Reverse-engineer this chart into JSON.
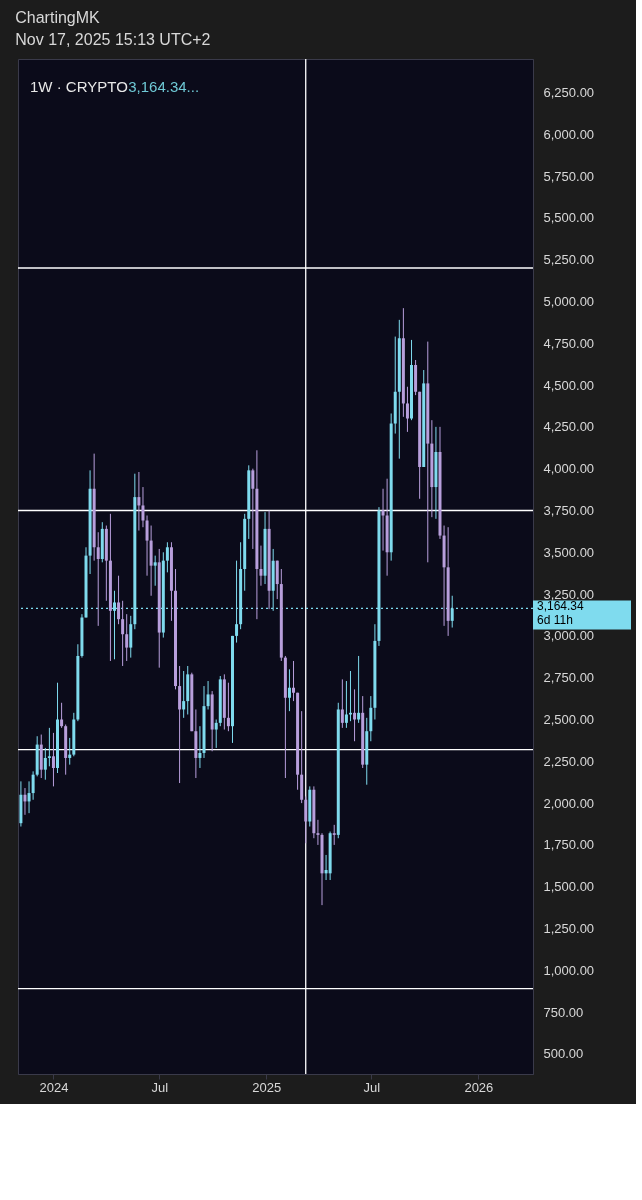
{
  "chart_data": {
    "type": "candlestick",
    "title": "1W · CRYPTO",
    "subtitle": "3,164.34...",
    "annotations": [
      "ChartingMK",
      "Nov 17, 2025 15:13 UTC+2",
      "6d 11h"
    ],
    "x": [
      "2023-11-06",
      "2023-11-13",
      "2023-11-20",
      "2023-11-27",
      "2023-12-04",
      "2023-12-11",
      "2023-12-18",
      "2023-12-25",
      "2024-01-01",
      "2024-01-08",
      "2024-01-15",
      "2024-01-22",
      "2024-01-29",
      "2024-02-05",
      "2024-02-12",
      "2024-02-19",
      "2024-02-26",
      "2024-03-04",
      "2024-03-11",
      "2024-03-18",
      "2024-03-25",
      "2024-04-01",
      "2024-04-08",
      "2024-04-15",
      "2024-04-22",
      "2024-04-29",
      "2024-05-06",
      "2024-05-13",
      "2024-05-20",
      "2024-05-27",
      "2024-06-03",
      "2024-06-10",
      "2024-06-17",
      "2024-06-24",
      "2024-07-01",
      "2024-07-08",
      "2024-07-15",
      "2024-07-22",
      "2024-07-29",
      "2024-08-05",
      "2024-08-12",
      "2024-08-19",
      "2024-08-26",
      "2024-09-02",
      "2024-09-09",
      "2024-09-16",
      "2024-09-23",
      "2024-09-30",
      "2024-10-07",
      "2024-10-14",
      "2024-10-21",
      "2024-10-28",
      "2024-11-04",
      "2024-11-11",
      "2024-11-18",
      "2024-11-25",
      "2024-12-02",
      "2024-12-09",
      "2024-12-16",
      "2024-12-23",
      "2024-12-30",
      "2025-01-06",
      "2025-01-13",
      "2025-01-20",
      "2025-01-27",
      "2025-02-03",
      "2025-02-10",
      "2025-02-17",
      "2025-02-24",
      "2025-03-03",
      "2025-03-10",
      "2025-03-17",
      "2025-03-24",
      "2025-03-31",
      "2025-04-07",
      "2025-04-14",
      "2025-04-21",
      "2025-04-28",
      "2025-05-05",
      "2025-05-12",
      "2025-05-19",
      "2025-05-26",
      "2025-06-02",
      "2025-06-09",
      "2025-06-16",
      "2025-06-23",
      "2025-06-30",
      "2025-07-07",
      "2025-07-14",
      "2025-07-21",
      "2025-07-28",
      "2025-08-04",
      "2025-08-11",
      "2025-08-18",
      "2025-08-25",
      "2025-09-01",
      "2025-09-08",
      "2025-09-15",
      "2025-09-22",
      "2025-09-29",
      "2025-10-06",
      "2025-10-13",
      "2025-10-20",
      "2025-10-27",
      "2025-11-03",
      "2025-11-10",
      "2025-11-17"
    ],
    "ohlc": [
      [
        1880,
        2130,
        1860,
        2050
      ],
      [
        2050,
        2090,
        1930,
        2010
      ],
      [
        2010,
        2130,
        1940,
        2060
      ],
      [
        2060,
        2190,
        2020,
        2170
      ],
      [
        2170,
        2400,
        2160,
        2350
      ],
      [
        2350,
        2410,
        2150,
        2200
      ],
      [
        2200,
        2330,
        2140,
        2270
      ],
      [
        2270,
        2450,
        2220,
        2280
      ],
      [
        2280,
        2420,
        2100,
        2210
      ],
      [
        2210,
        2720,
        2180,
        2500
      ],
      [
        2500,
        2600,
        2450,
        2460
      ],
      [
        2460,
        2470,
        2170,
        2270
      ],
      [
        2270,
        2390,
        2230,
        2290
      ],
      [
        2290,
        2540,
        2280,
        2500
      ],
      [
        2500,
        2950,
        2490,
        2880
      ],
      [
        2880,
        3130,
        2870,
        3110
      ],
      [
        3110,
        3530,
        3110,
        3480
      ],
      [
        3480,
        3990,
        3370,
        3880
      ],
      [
        3880,
        4090,
        3450,
        3530
      ],
      [
        3530,
        3620,
        3060,
        3460
      ],
      [
        3460,
        3680,
        3440,
        3640
      ],
      [
        3640,
        3660,
        3210,
        3450
      ],
      [
        3450,
        3730,
        2850,
        3150
      ],
      [
        3150,
        3270,
        2860,
        3200
      ],
      [
        3200,
        3360,
        3070,
        3100
      ],
      [
        3100,
        3210,
        2820,
        3010
      ],
      [
        3010,
        3130,
        2850,
        2930
      ],
      [
        2930,
        3120,
        2870,
        3070
      ],
      [
        3070,
        3970,
        3040,
        3830
      ],
      [
        3830,
        3980,
        3630,
        3780
      ],
      [
        3780,
        3890,
        3650,
        3690
      ],
      [
        3690,
        3720,
        3360,
        3570
      ],
      [
        3570,
        3660,
        3240,
        3420
      ],
      [
        3420,
        3480,
        3300,
        3440
      ],
      [
        3440,
        3520,
        2810,
        3020
      ],
      [
        3020,
        3500,
        2990,
        3450
      ],
      [
        3450,
        3560,
        3380,
        3530
      ],
      [
        3530,
        3560,
        3090,
        3270
      ],
      [
        3270,
        3400,
        2680,
        2700
      ],
      [
        2700,
        2820,
        2120,
        2560
      ],
      [
        2560,
        2790,
        2510,
        2610
      ],
      [
        2610,
        2820,
        2530,
        2770
      ],
      [
        2770,
        2780,
        2430,
        2430
      ],
      [
        2430,
        2560,
        2150,
        2270
      ],
      [
        2270,
        2460,
        2210,
        2300
      ],
      [
        2300,
        2700,
        2270,
        2580
      ],
      [
        2580,
        2730,
        2560,
        2650
      ],
      [
        2650,
        2670,
        2310,
        2440
      ],
      [
        2440,
        2500,
        2330,
        2480
      ],
      [
        2480,
        2760,
        2460,
        2740
      ],
      [
        2740,
        2770,
        2440,
        2510
      ],
      [
        2510,
        2720,
        2430,
        2460
      ],
      [
        2460,
        3000,
        2360,
        3000
      ],
      [
        3000,
        3450,
        2960,
        3070
      ],
      [
        3070,
        3560,
        3040,
        3400
      ],
      [
        3400,
        3730,
        3270,
        3700
      ],
      [
        3700,
        4020,
        3580,
        3990
      ],
      [
        3990,
        4000,
        3520,
        3880
      ],
      [
        3880,
        4110,
        3100,
        3400
      ],
      [
        3400,
        3540,
        3300,
        3360
      ],
      [
        3360,
        3740,
        3310,
        3640
      ],
      [
        3640,
        3750,
        3160,
        3270
      ],
      [
        3270,
        3520,
        3150,
        3450
      ],
      [
        3450,
        3450,
        3220,
        3310
      ],
      [
        3310,
        3400,
        2850,
        2870
      ],
      [
        2870,
        2880,
        2150,
        2630
      ],
      [
        2630,
        2800,
        2550,
        2690
      ],
      [
        2690,
        2850,
        2610,
        2660
      ],
      [
        2660,
        2660,
        2080,
        2170
      ],
      [
        2170,
        2550,
        2000,
        2020
      ],
      [
        2020,
        2040,
        1760,
        1890
      ],
      [
        1890,
        2100,
        1860,
        2080
      ],
      [
        2080,
        2100,
        1790,
        1820
      ],
      [
        1820,
        1900,
        1750,
        1810
      ],
      [
        1810,
        1820,
        1390,
        1580
      ],
      [
        1580,
        1690,
        1540,
        1600
      ],
      [
        1580,
        1830,
        1540,
        1820
      ],
      [
        1820,
        1870,
        1750,
        1810
      ],
      [
        1810,
        2600,
        1790,
        2560
      ],
      [
        2560,
        2740,
        2450,
        2480
      ],
      [
        2480,
        2730,
        2450,
        2530
      ],
      [
        2530,
        2790,
        2490,
        2540
      ],
      [
        2540,
        2680,
        2370,
        2500
      ],
      [
        2500,
        2880,
        2480,
        2540
      ],
      [
        2540,
        2640,
        2210,
        2230
      ],
      [
        2230,
        2510,
        2110,
        2430
      ],
      [
        2430,
        2640,
        2370,
        2570
      ],
      [
        2570,
        3070,
        2500,
        2970
      ],
      [
        2970,
        3770,
        2940,
        3750
      ],
      [
        3750,
        3880,
        3510,
        3720
      ],
      [
        3720,
        3940,
        3360,
        3500
      ],
      [
        3500,
        4330,
        3450,
        4270
      ],
      [
        4270,
        4790,
        4210,
        4460
      ],
      [
        4460,
        4890,
        4060,
        4780
      ],
      [
        4780,
        4960,
        4310,
        4390
      ],
      [
        4390,
        4490,
        4220,
        4300
      ],
      [
        4300,
        4770,
        4290,
        4620
      ],
      [
        4620,
        4650,
        4440,
        4460
      ],
      [
        4460,
        4460,
        3820,
        4010
      ],
      [
        4010,
        4590,
        4010,
        4510
      ],
      [
        4510,
        4760,
        3440,
        4150
      ],
      [
        4150,
        4290,
        3710,
        3890
      ],
      [
        3890,
        4250,
        3700,
        4100
      ],
      [
        4100,
        4250,
        3580,
        3600
      ],
      [
        3600,
        3660,
        3060,
        3410
      ],
      [
        3410,
        3650,
        3000,
        3090
      ],
      [
        3090,
        3240,
        3050,
        3164.34
      ]
    ],
    "colors": [
      "#7fdbee",
      "#b89fdc",
      "#7fdbee",
      "#7fdbee",
      "#7fdbee",
      "#b89fdc",
      "#7fdbee",
      "#7fdbee",
      "#b89fdc",
      "#7fdbee",
      "#b89fdc",
      "#b89fdc",
      "#7fdbee",
      "#7fdbee",
      "#7fdbee",
      "#7fdbee",
      "#7fdbee",
      "#7fdbee",
      "#b89fdc",
      "#b89fdc",
      "#7fdbee",
      "#b89fdc",
      "#b89fdc",
      "#7fdbee",
      "#b89fdc",
      "#b89fdc",
      "#b89fdc",
      "#7fdbee",
      "#7fdbee",
      "#b89fdc",
      "#b89fdc",
      "#b89fdc",
      "#b89fdc",
      "#7fdbee",
      "#b89fdc",
      "#7fdbee",
      "#7fdbee",
      "#b89fdc",
      "#b89fdc",
      "#b89fdc",
      "#7fdbee",
      "#7fdbee",
      "#b89fdc",
      "#b89fdc",
      "#7fdbee",
      "#7fdbee",
      "#7fdbee",
      "#b89fdc",
      "#7fdbee",
      "#7fdbee",
      "#b89fdc",
      "#b89fdc",
      "#7fdbee",
      "#7fdbee",
      "#7fdbee",
      "#7fdbee",
      "#7fdbee",
      "#b89fdc",
      "#b89fdc",
      "#b89fdc",
      "#7fdbee",
      "#b89fdc",
      "#7fdbee",
      "#b89fdc",
      "#b89fdc",
      "#b89fdc",
      "#7fdbee",
      "#b89fdc",
      "#b89fdc",
      "#b89fdc",
      "#b89fdc",
      "#7fdbee",
      "#b89fdc",
      "#b89fdc",
      "#b89fdc",
      "#7fdbee",
      "#7fdbee",
      "#b89fdc",
      "#7fdbee",
      "#b89fdc",
      "#7fdbee",
      "#7fdbee",
      "#b89fdc",
      "#7fdbee",
      "#b89fdc",
      "#7fdbee",
      "#7fdbee",
      "#7fdbee",
      "#7fdbee",
      "#b89fdc",
      "#b89fdc",
      "#7fdbee",
      "#7fdbee",
      "#7fdbee",
      "#b89fdc",
      "#b89fdc",
      "#7fdbee",
      "#b89fdc",
      "#b89fdc",
      "#7fdbee",
      "#b89fdc",
      "#b89fdc",
      "#7fdbee",
      "#b89fdc",
      "#b89fdc",
      "#b89fdc",
      "#7fdbee"
    ],
    "xlim": [
      "2023-11-01",
      "2026-04-05"
    ],
    "xticks": [
      {
        "value": "2024-01-01",
        "label": "2024"
      },
      {
        "value": "2024-07-01",
        "label": "Jul"
      },
      {
        "value": "2025-01-01",
        "label": "2025"
      },
      {
        "value": "2025-07-01",
        "label": "Jul"
      },
      {
        "value": "2026-01-01",
        "label": "2026"
      }
    ],
    "ylim": [
      380,
      6450
    ],
    "yticks": [
      {
        "value": 500,
        "label": "500.00"
      },
      {
        "value": 750,
        "label": "750.00"
      },
      {
        "value": 1000,
        "label": "1,000.00"
      },
      {
        "value": 1250,
        "label": "1,250.00"
      },
      {
        "value": 1500,
        "label": "1,500.00"
      },
      {
        "value": 1750,
        "label": "1,750.00"
      },
      {
        "value": 2000,
        "label": "2,000.00"
      },
      {
        "value": 2250,
        "label": "2,250.00"
      },
      {
        "value": 2500,
        "label": "2,500.00"
      },
      {
        "value": 2750,
        "label": "2,750.00"
      },
      {
        "value": 3000,
        "label": "3,000.00"
      },
      {
        "value": 3250,
        "label": "3,250.00"
      },
      {
        "value": 3500,
        "label": "3,500.00"
      },
      {
        "value": 3750,
        "label": "3,750.00"
      },
      {
        "value": 4000,
        "label": "4,000.00"
      },
      {
        "value": 4250,
        "label": "4,250.00"
      },
      {
        "value": 4500,
        "label": "4,500.00"
      },
      {
        "value": 4750,
        "label": "4,750.00"
      },
      {
        "value": 5000,
        "label": "5,000.00"
      },
      {
        "value": 5250,
        "label": "5,250.00"
      },
      {
        "value": 5500,
        "label": "5,500.00"
      },
      {
        "value": 5750,
        "label": "5,750.00"
      },
      {
        "value": 6000,
        "label": "6,000.00"
      },
      {
        "value": 6250,
        "label": "6,250.00"
      }
    ],
    "ref_lines": [
      {
        "axis": "y",
        "value": 5200,
        "color": "#ffffff"
      },
      {
        "axis": "y",
        "value": 3750,
        "color": "#ffffff"
      },
      {
        "axis": "y",
        "value": 2320,
        "color": "#ffffff"
      },
      {
        "axis": "y",
        "value": 890,
        "color": "#ffffff"
      },
      {
        "axis": "x",
        "value": "2025-03-10",
        "color": "#ffffff"
      },
      {
        "axis": "y",
        "value": 3164.34,
        "label": "3,164.34",
        "color": "#7fdbee",
        "line_style": "dotted"
      }
    ],
    "grid": false
  }
}
